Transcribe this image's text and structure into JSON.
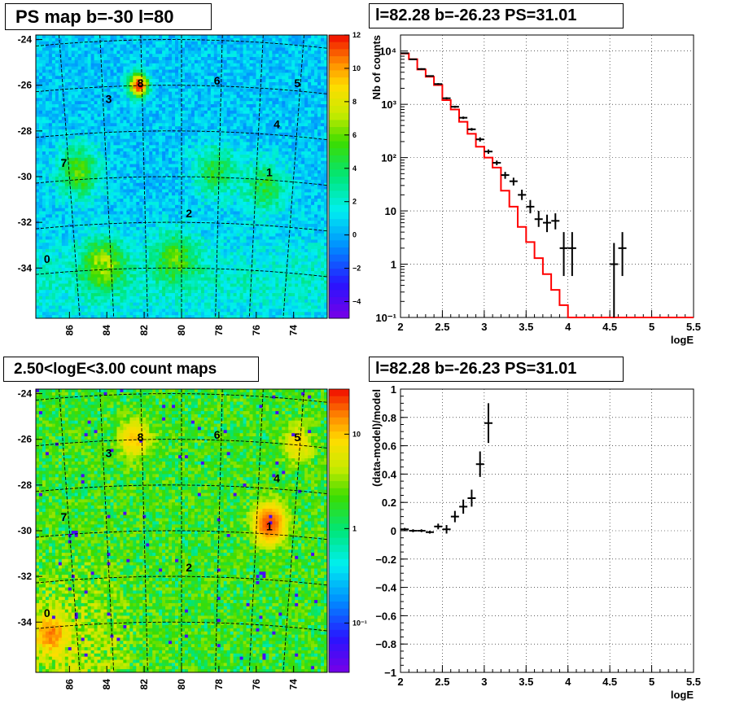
{
  "chart_data": [
    {
      "type": "heatmap",
      "title": "PS map b=-30 l=80",
      "colorscale": "rainbow",
      "yticks": [
        "-24",
        "-26",
        "-28",
        "-30",
        "-32",
        "-34"
      ],
      "xticks": [
        "86",
        "84",
        "82",
        "80",
        "78",
        "76",
        "74"
      ],
      "colorbar_ticks": [
        "12",
        "10",
        "8",
        "6",
        "4",
        "2",
        "0",
        "−2",
        "−4"
      ],
      "zlim": [
        -5,
        12
      ],
      "hotspots": [
        {
          "l": 82.3,
          "b": -26.0,
          "value": 12
        },
        {
          "l": 85.5,
          "b": -29.8,
          "value": 5
        },
        {
          "l": 78.2,
          "b": -29.8,
          "value": 4
        },
        {
          "l": 84.2,
          "b": -33.8,
          "value": 5
        },
        {
          "l": 75.5,
          "b": -30.5,
          "value": 4
        },
        {
          "l": 80.3,
          "b": -33.5,
          "value": 4
        }
      ],
      "sources": [
        {
          "label": "0",
          "l": 87.2,
          "b": -33.6
        },
        {
          "label": "1",
          "l": 75.3,
          "b": -29.8
        },
        {
          "label": "2",
          "l": 79.6,
          "b": -31.6
        },
        {
          "label": "3",
          "l": 83.9,
          "b": -26.6
        },
        {
          "label": "4",
          "l": 74.9,
          "b": -27.7
        },
        {
          "label": "5",
          "l": 73.8,
          "b": -25.9
        },
        {
          "label": "6",
          "l": 78.1,
          "b": -25.8
        },
        {
          "label": "7",
          "l": 86.3,
          "b": -29.4
        },
        {
          "label": "8",
          "l": 82.2,
          "b": -25.9
        }
      ]
    },
    {
      "type": "line",
      "title": "l=82.28 b=-26.23 PS=31.01",
      "xlabel": "logE",
      "ylabel": "Nb of counts",
      "xlim": [
        2,
        5.5
      ],
      "ylim": [
        0.1,
        20000
      ],
      "yscale": "log",
      "grid": true,
      "xticks": [
        "2",
        "2.5",
        "3",
        "3.5",
        "4",
        "4.5",
        "5",
        "5.5"
      ],
      "ytick_values": [
        0.1,
        1,
        10,
        100,
        1000,
        10000
      ],
      "yticks": [
        "10⁻¹",
        "1",
        "10",
        "10²",
        "10³",
        "10⁴"
      ],
      "series": [
        {
          "kind": "step",
          "color": "#ff0000",
          "edges": [
            2.0,
            2.1,
            2.2,
            2.3,
            2.4,
            2.5,
            2.6,
            2.7,
            2.8,
            2.9,
            3.0,
            3.1,
            3.2,
            3.3,
            3.4,
            3.5,
            3.6,
            3.7,
            3.8,
            3.9,
            4.0,
            4.1,
            4.2,
            4.3,
            4.4,
            4.5,
            4.6,
            4.7,
            4.8,
            4.9,
            5.0,
            5.1,
            5.2,
            5.3,
            5.4,
            5.5
          ],
          "values": [
            9000,
            7000,
            4500,
            3300,
            2300,
            1200,
            800,
            470,
            280,
            160,
            100,
            65,
            24,
            12,
            5,
            2.6,
            1.3,
            0.65,
            0.33,
            0.17,
            0.1,
            0.1,
            0.1,
            0.1,
            0.1,
            0.1,
            0.1,
            0.1,
            0.1,
            0.1,
            0.1,
            0.1,
            0.1,
            0.1,
            0.1
          ]
        },
        {
          "kind": "errorbar",
          "color": "#000000",
          "x": [
            2.05,
            2.15,
            2.25,
            2.35,
            2.45,
            2.55,
            2.65,
            2.75,
            2.85,
            2.95,
            3.05,
            3.15,
            3.25,
            3.35,
            3.45,
            3.55,
            3.65,
            3.75,
            3.85,
            3.95,
            4.05,
            4.55,
            4.65
          ],
          "y": [
            9100,
            7000,
            4600,
            3400,
            2400,
            1300,
            900,
            560,
            340,
            220,
            130,
            80,
            47,
            36,
            20,
            12,
            7,
            6,
            6.5,
            2,
            2,
            1,
            2
          ],
          "ylo": [
            8900,
            6850,
            4450,
            3300,
            2300,
            1240,
            860,
            530,
            320,
            200,
            118,
            72,
            40,
            30,
            16,
            9,
            5,
            4,
            4.5,
            0.6,
            0.6,
            0.1,
            0.6
          ],
          "yhi": [
            9300,
            7150,
            4750,
            3500,
            2500,
            1360,
            940,
            590,
            360,
            240,
            142,
            88,
            54,
            42,
            25,
            16,
            10,
            8.5,
            9,
            4,
            4,
            2.5,
            4
          ]
        }
      ]
    },
    {
      "type": "heatmap",
      "title": "2.50<logE<3.00 count maps",
      "colorscale": "rainbow",
      "zscale": "log",
      "yticks": [
        "-24",
        "-26",
        "-28",
        "-30",
        "-32",
        "-34"
      ],
      "xticks": [
        "86",
        "84",
        "82",
        "80",
        "78",
        "76",
        "74"
      ],
      "colorbar_ticks": [
        "10",
        "1",
        "10⁻¹"
      ],
      "zlim": [
        0.03,
        30
      ],
      "hotspots": [
        {
          "l": 75.3,
          "b": -29.7,
          "value": 20
        },
        {
          "l": 87.0,
          "b": -34.5,
          "value": 12
        },
        {
          "l": 82.5,
          "b": -26.0,
          "value": 8
        },
        {
          "l": 73.8,
          "b": -26.2,
          "value": 6
        }
      ],
      "sources": [
        {
          "label": "0",
          "l": 87.2,
          "b": -33.6
        },
        {
          "label": "1",
          "l": 75.3,
          "b": -29.8
        },
        {
          "label": "2",
          "l": 79.6,
          "b": -31.6
        },
        {
          "label": "3",
          "l": 83.9,
          "b": -26.6
        },
        {
          "label": "4",
          "l": 74.9,
          "b": -27.7
        },
        {
          "label": "5",
          "l": 73.8,
          "b": -25.9
        },
        {
          "label": "6",
          "l": 78.1,
          "b": -25.8
        },
        {
          "label": "7",
          "l": 86.3,
          "b": -29.4
        },
        {
          "label": "8",
          "l": 82.2,
          "b": -25.9
        }
      ]
    },
    {
      "type": "scatter",
      "title": "l=82.28 b=-26.23 PS=31.01",
      "xlabel": "logE",
      "ylabel": "(data-model)/model",
      "xlim": [
        2,
        5.5
      ],
      "ylim": [
        -1,
        1
      ],
      "grid": true,
      "xticks": [
        "2",
        "2.5",
        "3",
        "3.5",
        "4",
        "4.5",
        "5",
        "5.5"
      ],
      "yticks": [
        "1",
        "0.8",
        "0.6",
        "0.4",
        "0.2",
        "0",
        "−0.2",
        "−0.4",
        "−0.6",
        "−0.8",
        "−1"
      ],
      "series": [
        {
          "kind": "errorbar",
          "color": "#000000",
          "x": [
            2.05,
            2.15,
            2.25,
            2.35,
            2.45,
            2.55,
            2.65,
            2.75,
            2.85,
            2.95,
            3.05
          ],
          "y": [
            0.01,
            0.0,
            0.0,
            -0.01,
            0.03,
            0.01,
            0.1,
            0.17,
            0.23,
            0.47,
            0.76
          ],
          "ylo": [
            0.0,
            -0.01,
            -0.01,
            -0.02,
            0.01,
            -0.02,
            0.06,
            0.12,
            0.17,
            0.38,
            0.62
          ],
          "yhi": [
            0.02,
            0.01,
            0.01,
            0.0,
            0.05,
            0.04,
            0.14,
            0.22,
            0.29,
            0.56,
            0.9
          ]
        }
      ]
    }
  ]
}
